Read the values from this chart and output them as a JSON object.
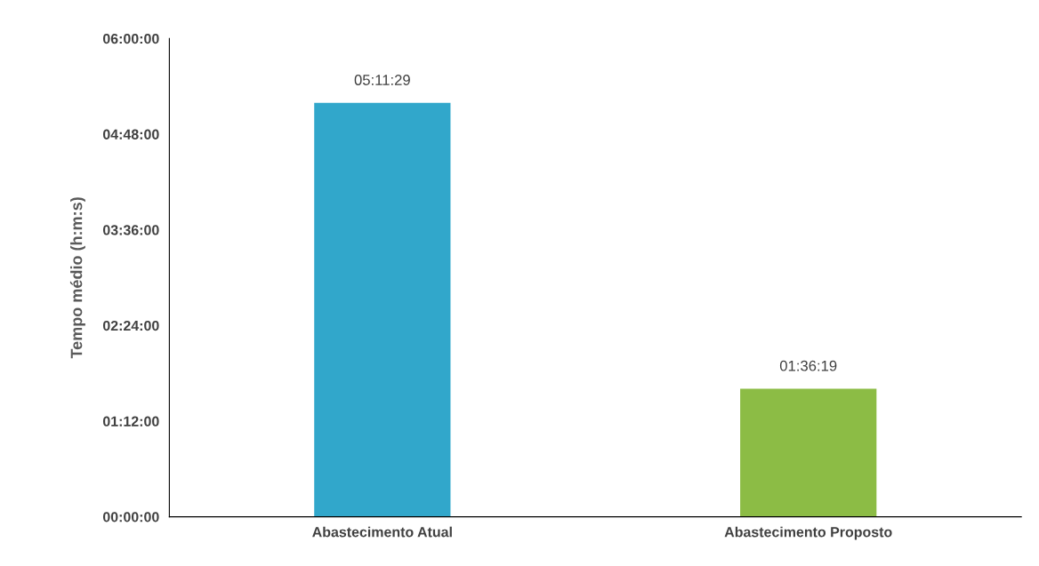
{
  "chart_data": {
    "type": "bar",
    "ylabel": "Tempo médio (h:m:s)",
    "categories": [
      "Abastecimento Atual",
      "Abastecimento Proposto"
    ],
    "values": [
      5.191389,
      1.605278
    ],
    "value_labels": [
      "05:11:29",
      "01:36:19"
    ],
    "colors": [
      "#31a7cb",
      "#8cbc45"
    ],
    "ylim": [
      0,
      6
    ],
    "yticks": [
      {
        "value": 0,
        "label": "00:00:00"
      },
      {
        "value": 1.2,
        "label": "01:12:00"
      },
      {
        "value": 2.4,
        "label": "02:24:00"
      },
      {
        "value": 3.6,
        "label": "03:36:00"
      },
      {
        "value": 4.8,
        "label": "04:48:00"
      },
      {
        "value": 6,
        "label": "06:00:00"
      }
    ],
    "grid": false,
    "legend": false
  }
}
